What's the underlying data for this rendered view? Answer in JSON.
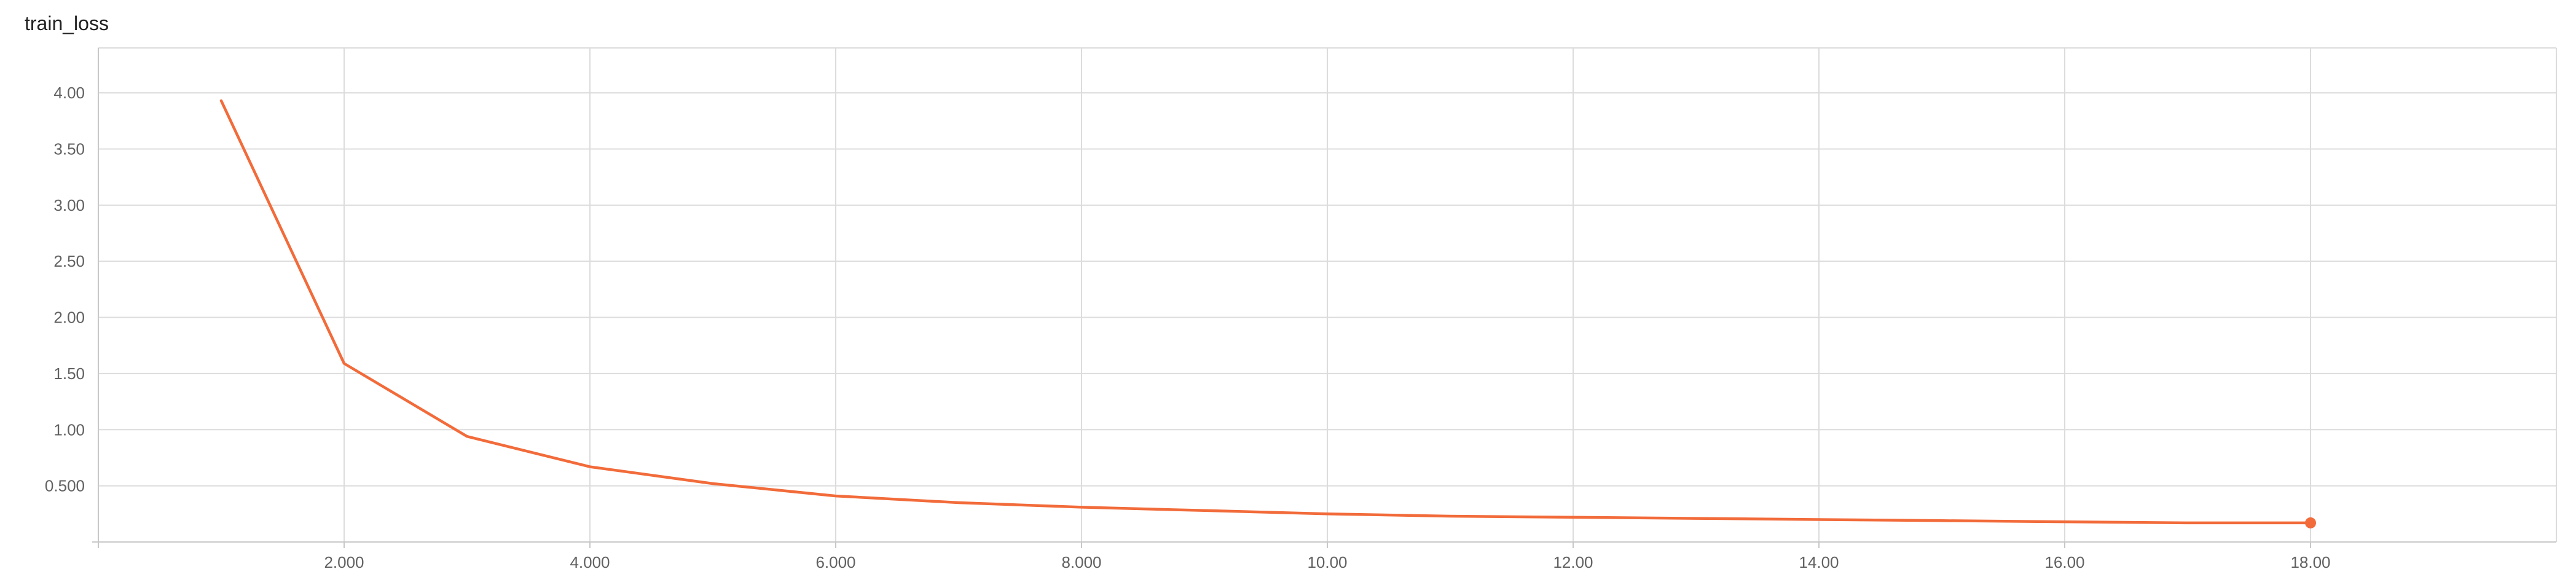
{
  "card": {
    "title": "train_loss"
  },
  "chart_data": {
    "type": "line",
    "title": "train_loss",
    "xlabel": "",
    "ylabel": "",
    "xlim": [
      0,
      20
    ],
    "ylim": [
      0,
      4.4
    ],
    "x_ticks": [
      2,
      4,
      6,
      8,
      10,
      12,
      14,
      16,
      18
    ],
    "x_tick_labels": [
      "2.000",
      "4.000",
      "6.000",
      "8.000",
      "10.00",
      "12.00",
      "14.00",
      "16.00",
      "18.00"
    ],
    "y_ticks": [
      0.5,
      1.0,
      1.5,
      2.0,
      2.5,
      3.0,
      3.5,
      4.0
    ],
    "y_tick_labels": [
      "0.500",
      "1.00",
      "1.50",
      "2.00",
      "2.50",
      "3.00",
      "3.50",
      "4.00"
    ],
    "grid": true,
    "series": [
      {
        "color": "#f26b3a",
        "x": [
          1,
          2,
          3,
          4,
          5,
          6,
          7,
          8,
          9,
          10,
          11,
          12,
          13,
          14,
          15,
          16,
          17,
          18
        ],
        "y": [
          3.93,
          1.59,
          0.94,
          0.67,
          0.52,
          0.41,
          0.35,
          0.31,
          0.28,
          0.25,
          0.23,
          0.22,
          0.21,
          0.2,
          0.19,
          0.18,
          0.17,
          0.17
        ]
      }
    ]
  }
}
